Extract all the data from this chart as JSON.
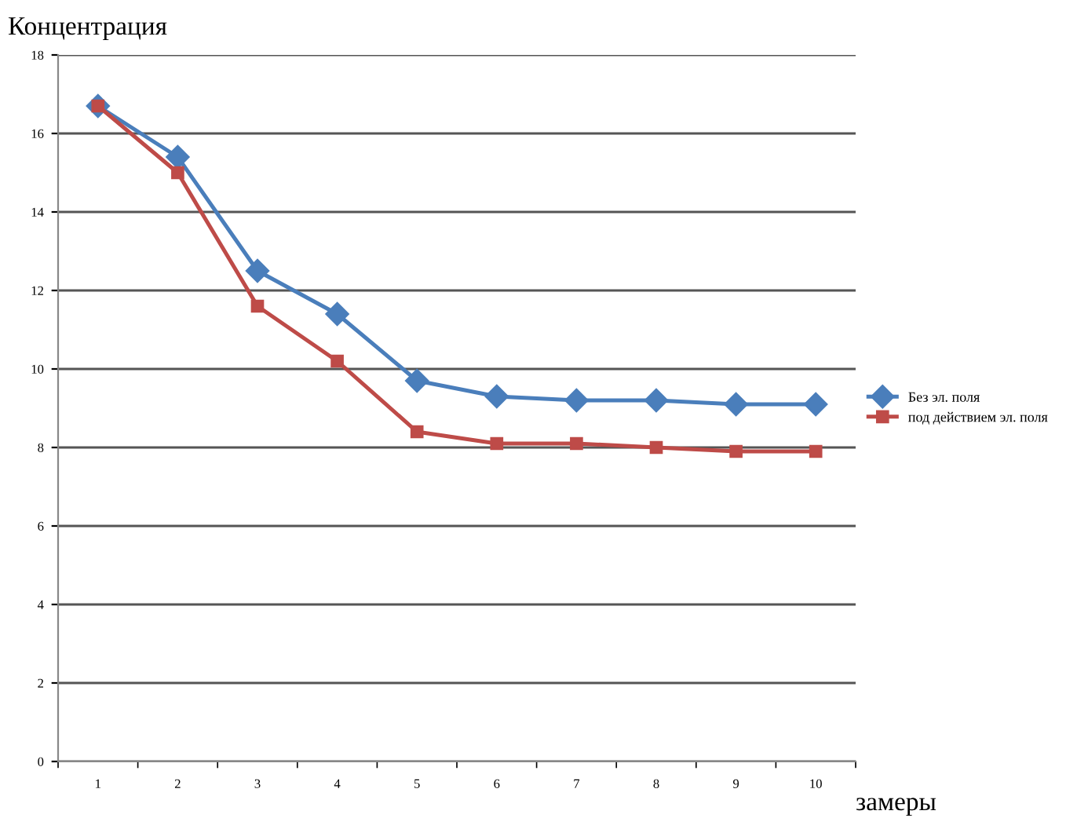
{
  "chart_data": {
    "type": "line",
    "xlabel": "замеры",
    "ylabel": "Концентрация",
    "categories": [
      "1",
      "2",
      "3",
      "4",
      "5",
      "6",
      "7",
      "8",
      "9",
      "10"
    ],
    "series": [
      {
        "name": "Без эл. поля",
        "color": "#4a7ebb",
        "marker": "diamond",
        "values": [
          16.7,
          15.4,
          12.5,
          11.4,
          9.7,
          9.3,
          9.2,
          9.2,
          9.1,
          9.1
        ]
      },
      {
        "name": "под действием эл. поля",
        "color": "#be4b48",
        "marker": "square",
        "values": [
          16.7,
          15.0,
          11.6,
          10.2,
          8.4,
          8.1,
          8.1,
          8.0,
          7.9,
          7.9
        ]
      }
    ],
    "ylim": [
      0,
      18
    ],
    "yticks": [
      0,
      2,
      4,
      6,
      8,
      10,
      12,
      14,
      16,
      18
    ],
    "grid": "y",
    "legend": "right",
    "line_style": "solid"
  }
}
